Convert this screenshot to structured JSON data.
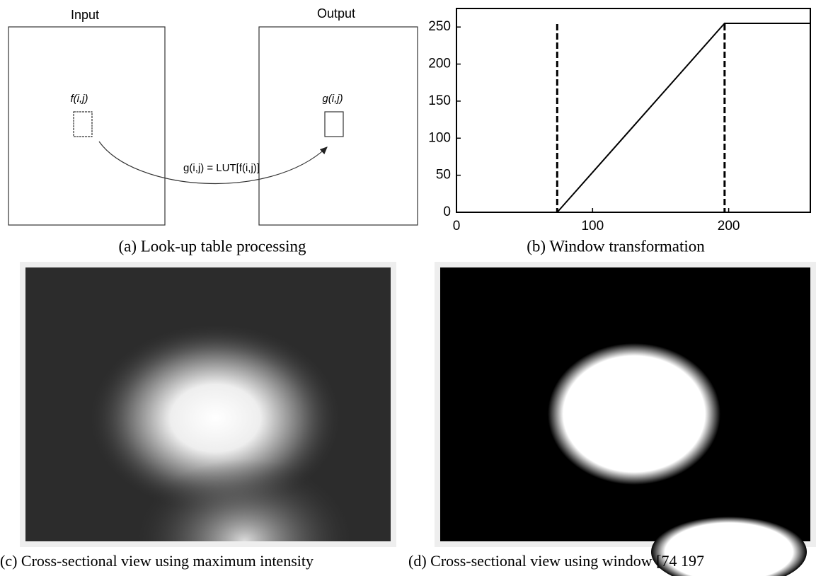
{
  "figure": {
    "panel_a": {
      "input_label": "Input",
      "output_label": "Output",
      "input_pixel": "f(i,j)",
      "output_pixel": "g(i,j)",
      "mapping": "g(i,j) = LUT[f(i,j)]",
      "caption": "(a) Look-up table processing"
    },
    "panel_b": {
      "caption": "(b) Window transformation"
    },
    "panel_c": {
      "caption": "(c) Cross-sectional view using maximum intensity"
    },
    "panel_d": {
      "caption": "(d) Cross-sectional view using window [74 197"
    }
  },
  "chart_data": {
    "type": "line",
    "x": [
      74,
      197,
      260
    ],
    "series": [
      {
        "color": "#000000",
        "values": [
          0,
          255,
          255
        ]
      }
    ],
    "vlines": [
      74,
      197
    ],
    "xlim": [
      0,
      260
    ],
    "xticks": [
      0,
      100,
      200
    ],
    "ylim": [
      0,
      275
    ],
    "yticks": [
      0,
      50,
      100,
      150,
      200,
      250
    ]
  }
}
